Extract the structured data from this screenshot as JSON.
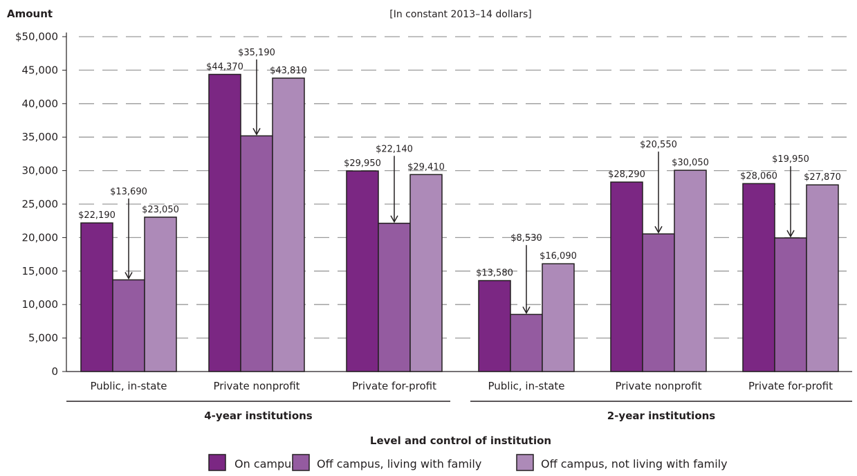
{
  "chart_data": {
    "type": "bar",
    "title": "",
    "subtitle": "[In constant 2013–14 dollars]",
    "ylabel": "Amount",
    "xlabel": "Level and control of institution",
    "ylim": [
      0,
      50000
    ],
    "yticks": [
      "0",
      "5,000",
      "10,000",
      "15,000",
      "20,000",
      "25,000",
      "30,000",
      "35,000",
      "40,000",
      "45,000",
      "$50,000"
    ],
    "grid": true,
    "legend_position": "bottom",
    "groups": [
      {
        "label": "4-year institutions",
        "categories": [
          "Public, in-state",
          "Private nonprofit",
          "Private for-profit"
        ]
      },
      {
        "label": "2-year institutions",
        "categories": [
          "Public, in-state",
          "Private nonprofit",
          "Private for-profit"
        ]
      }
    ],
    "categories": [
      "Public, in-state",
      "Private nonprofit",
      "Private for-profit",
      "Public, in-state",
      "Private nonprofit",
      "Private for-profit"
    ],
    "series": [
      {
        "name": "On campus",
        "color": "#7b2783",
        "values": [
          22190,
          44370,
          29950,
          13580,
          28290,
          28060
        ],
        "labels": [
          "$22,190",
          "$44,370",
          "$29,950",
          "$13,580",
          "$28,290",
          "$28,060"
        ]
      },
      {
        "name": "Off campus, living with family",
        "color": "#945ba0",
        "values": [
          13690,
          35190,
          22140,
          8530,
          20550,
          19950
        ],
        "labels": [
          "$13,690",
          "$35,190",
          "$22,140",
          "$8,530",
          "$20,550",
          "$19,950"
        ]
      },
      {
        "name": "Off campus, not living with family",
        "color": "#ad8ab8",
        "values": [
          23050,
          43810,
          29410,
          16090,
          30050,
          27870
        ],
        "labels": [
          "$23,050",
          "$43,810",
          "$29,410",
          "$16,090",
          "$30,050",
          "$27,870"
        ]
      }
    ]
  }
}
